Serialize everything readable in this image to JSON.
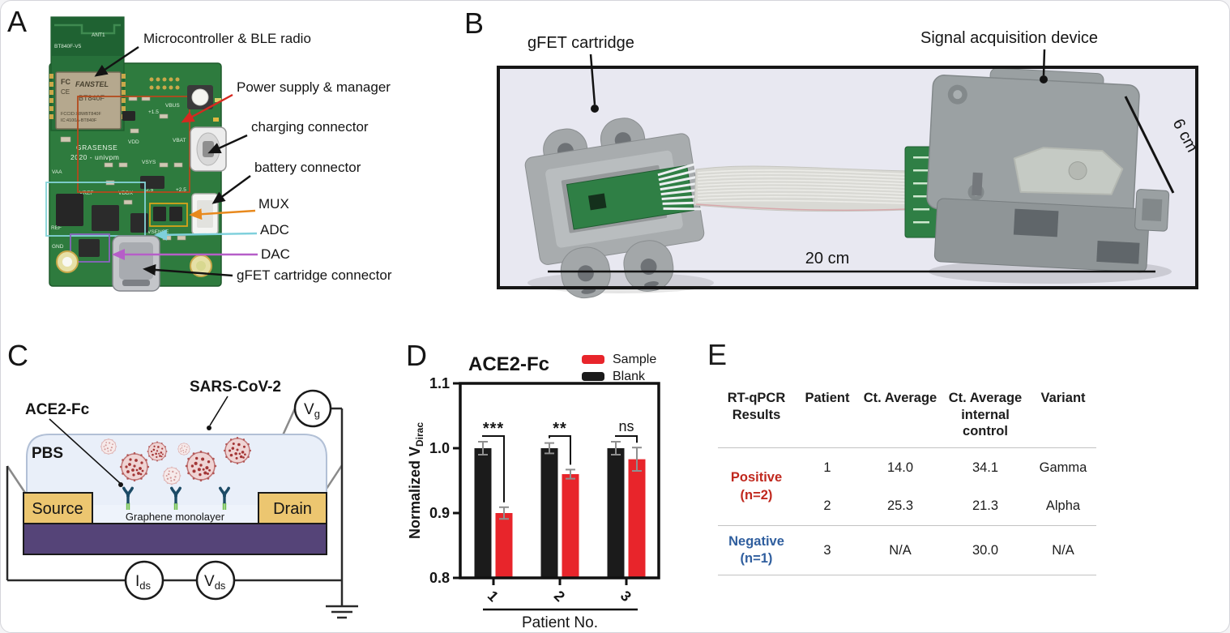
{
  "colors": {
    "pcb_green": "#2e7b3e",
    "pcb_dark_green": "#256a35",
    "module_tan": "#b5a88e",
    "photo_bg": "#e8e8f1",
    "device_gray": "#9ba1a3",
    "accent_red": "#d62920",
    "accent_orange": "#e8891d",
    "accent_cyan": "#7fd0dc",
    "accent_magenta": "#b65ec8",
    "substrate_purple": "#554478",
    "electrode_gold": "#ecc670",
    "droplet_blue": "#e9eff9",
    "positive_red": "#c0281e",
    "negative_blue": "#2f5e9e"
  },
  "panel_a": {
    "letter": "A",
    "labels": {
      "microcontroller": "Microcontroller & BLE radio",
      "power": "Power supply & manager",
      "charging": "charging connector",
      "battery": "battery connector",
      "mux": "MUX",
      "adc": "ADC",
      "dac": "DAC",
      "gfet_connector": "gFET cartridge connector"
    },
    "pcb_text": {
      "ant": "ANT1",
      "module_ver": "BT840F-V5",
      "fcc_logo": "FC",
      "ce_logo": "CE",
      "brand": "FANSTEL",
      "module_name": "BT840F",
      "fcc_id": "FCCID:X8WBT840F",
      "ic_id": "IC:4100A-BT840F",
      "board_name": "GRASENSE",
      "board_rev": "2020 - univpm",
      "vbus": "VBUS",
      "vbat": "VBAT",
      "vdd": "VDD",
      "vsys": "VSYS",
      "vaa": "VAA",
      "gnd": "GND",
      "vref": "VREF",
      "vddx": "VDDX",
      "vsense": "VSENSE",
      "p15": "+1.5",
      "m25": "-2.5",
      "p25": "+2.5",
      "ref": "REF"
    }
  },
  "panel_b": {
    "letter": "B",
    "labels": {
      "cartridge": "gFET cartridge",
      "device": "Signal acquisition device",
      "dim_depth": "6 cm",
      "dim_length": "20 cm"
    }
  },
  "panel_c": {
    "letter": "C",
    "labels": {
      "ace2": "ACE2-Fc",
      "virus": "SARS-CoV-2",
      "pbs": "PBS",
      "source": "Source",
      "drain": "Drain",
      "graphene": "Graphene monolayer",
      "vg_main": "V",
      "vg_sub": "g",
      "ids_main": "I",
      "ids_sub": "ds",
      "vds_main": "V",
      "vds_sub": "ds"
    }
  },
  "panel_d": {
    "letter": "D"
  },
  "chart_data": {
    "type": "bar",
    "title": "ACE2-Fc",
    "categories": [
      "1",
      "2",
      "3"
    ],
    "series": [
      {
        "name": "Blank",
        "color": "#1b1b1b",
        "values": [
          1.0,
          1.0,
          1.0
        ],
        "errors": [
          0.01,
          0.008,
          0.01
        ]
      },
      {
        "name": "Sample",
        "color": "#e8252b",
        "values": [
          0.9,
          0.96,
          0.983
        ],
        "errors": [
          0.009,
          0.007,
          0.018
        ]
      }
    ],
    "significance": [
      "***",
      "**",
      "ns"
    ],
    "xlabel": "Patient No.",
    "ylabel_main": "Normalized V",
    "ylabel_sub": "Dirac",
    "ylim": [
      0.8,
      1.1
    ],
    "yticks": [
      "0.8",
      "0.9",
      "1.0",
      "1.1"
    ],
    "legend_position": "top-right",
    "grid": false
  },
  "panel_e": {
    "letter": "E",
    "columns": {
      "c0": "RT-qPCR\nResults",
      "c1": "Patient",
      "c2": "Ct. Average",
      "c3": "Ct. Average\ninternal\ncontrol",
      "c4": "Variant"
    },
    "groups": [
      {
        "label": "Positive\n(n=2)",
        "rows": [
          {
            "patient": "1",
            "ct_average": "14.0",
            "ct_internal": "34.1",
            "variant": "Gamma"
          },
          {
            "patient": "2",
            "ct_average": "25.3",
            "ct_internal": "21.3",
            "variant": "Alpha"
          }
        ]
      },
      {
        "label": "Negative\n(n=1)",
        "rows": [
          {
            "patient": "3",
            "ct_average": "N/A",
            "ct_internal": "30.0",
            "variant": "N/A"
          }
        ]
      }
    ]
  }
}
